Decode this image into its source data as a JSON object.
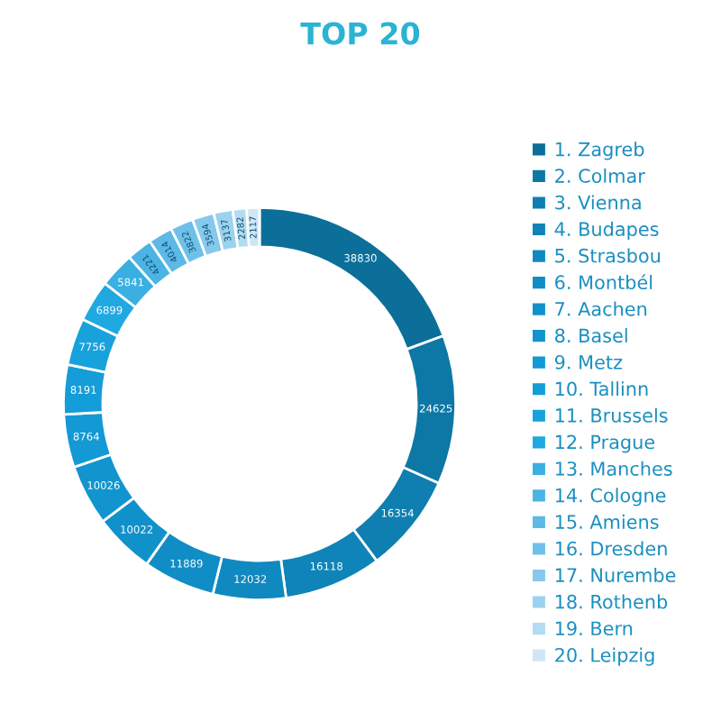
{
  "chart_data": {
    "type": "donut",
    "title": "TOP 20",
    "categories": [
      "1. Zagreb",
      "2. Colmar",
      "3. Vienna",
      "4. Budapes",
      "5. Strasbou",
      "6. Montbél",
      "7. Aachen",
      "8. Basel",
      "9. Metz",
      "10. Tallinn",
      "11. Brussels",
      "12. Prague",
      "13. Manches",
      "14. Cologne",
      "15. Amiens",
      "16. Dresden",
      "17. Nurembe",
      "18. Rothenb",
      "19. Bern",
      "20. Leipzig"
    ],
    "values": [
      38830,
      24625,
      16354,
      16118,
      12032,
      11889,
      10022,
      10026,
      8764,
      8191,
      7756,
      6899,
      5841,
      4221,
      4014,
      3822,
      3594,
      3137,
      2282,
      2117
    ],
    "colors": [
      "#0b6f99",
      "#0d78a6",
      "#0e7fb0",
      "#0f84b8",
      "#1089c0",
      "#118dc5",
      "#1191ca",
      "#1295ce",
      "#1399d3",
      "#149dd8",
      "#18a2dc",
      "#20a8e0",
      "#3aafe2",
      "#4cb4e4",
      "#5db9e6",
      "#6fc0e8",
      "#85c9ec",
      "#9ad2ef",
      "#b2dcf2",
      "#cde7f5"
    ],
    "data_labels": true,
    "legend": "right"
  }
}
